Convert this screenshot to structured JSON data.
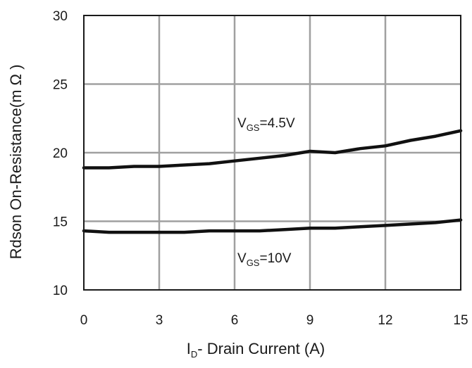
{
  "chart_data": {
    "type": "line",
    "title": "",
    "xlabel": {
      "main": "I",
      "sub": "D",
      "rest": "- Drain Current (A)"
    },
    "ylabel": "Rdson On-Resistance(m Ω )",
    "xlim": [
      0,
      15
    ],
    "ylim": [
      10,
      30
    ],
    "xticks": [
      "0",
      "3",
      "6",
      "9",
      "12",
      "15"
    ],
    "yticks": [
      "10",
      "15",
      "20",
      "25",
      "30"
    ],
    "grid": true,
    "series": [
      {
        "name": {
          "main": "V",
          "sub": "GS",
          "rest": "=4.5V"
        },
        "x": [
          0,
          1,
          2,
          3,
          4,
          5,
          6,
          7,
          8,
          9,
          10,
          11,
          12,
          13,
          14,
          15
        ],
        "y": [
          18.9,
          18.9,
          19.0,
          19.0,
          19.1,
          19.2,
          19.4,
          19.6,
          19.8,
          20.1,
          20.0,
          20.3,
          20.5,
          20.9,
          21.2,
          21.6
        ]
      },
      {
        "name": {
          "main": "V",
          "sub": "GS",
          "rest": "=10V"
        },
        "x": [
          0,
          1,
          2,
          3,
          4,
          5,
          6,
          7,
          8,
          9,
          10,
          11,
          12,
          13,
          14,
          15
        ],
        "y": [
          14.3,
          14.2,
          14.2,
          14.2,
          14.2,
          14.3,
          14.3,
          14.3,
          14.4,
          14.5,
          14.5,
          14.6,
          14.7,
          14.8,
          14.9,
          15.1
        ]
      }
    ]
  }
}
